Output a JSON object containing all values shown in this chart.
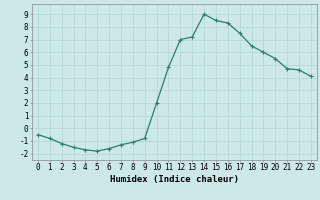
{
  "x": [
    0,
    1,
    2,
    3,
    4,
    5,
    6,
    7,
    8,
    9,
    10,
    11,
    12,
    13,
    14,
    15,
    16,
    17,
    18,
    19,
    20,
    21,
    22,
    23
  ],
  "y": [
    -0.5,
    -0.8,
    -1.2,
    -1.5,
    -1.7,
    -1.8,
    -1.6,
    -1.3,
    -1.1,
    -0.8,
    2.0,
    4.8,
    7.0,
    7.2,
    9.0,
    8.5,
    8.3,
    7.5,
    6.5,
    6.0,
    5.5,
    4.7,
    4.6,
    4.1
  ],
  "line_color": "#2e7d6e",
  "marker": "+",
  "marker_color": "#2e7d6e",
  "bg_color": "#cce9e7",
  "grid_color": "#b0d4d2",
  "xlabel": "Humidex (Indice chaleur)",
  "ylabel": "",
  "ylim": [
    -2.5,
    9.8
  ],
  "xlim": [
    -0.5,
    23.5
  ],
  "yticks": [
    -2,
    -1,
    0,
    1,
    2,
    3,
    4,
    5,
    6,
    7,
    8,
    9
  ],
  "xticks": [
    0,
    1,
    2,
    3,
    4,
    5,
    6,
    7,
    8,
    9,
    10,
    11,
    12,
    13,
    14,
    15,
    16,
    17,
    18,
    19,
    20,
    21,
    22,
    23
  ],
  "tick_fontsize": 5.5,
  "label_fontsize": 6.5,
  "line_width": 0.9,
  "marker_size": 3.5
}
